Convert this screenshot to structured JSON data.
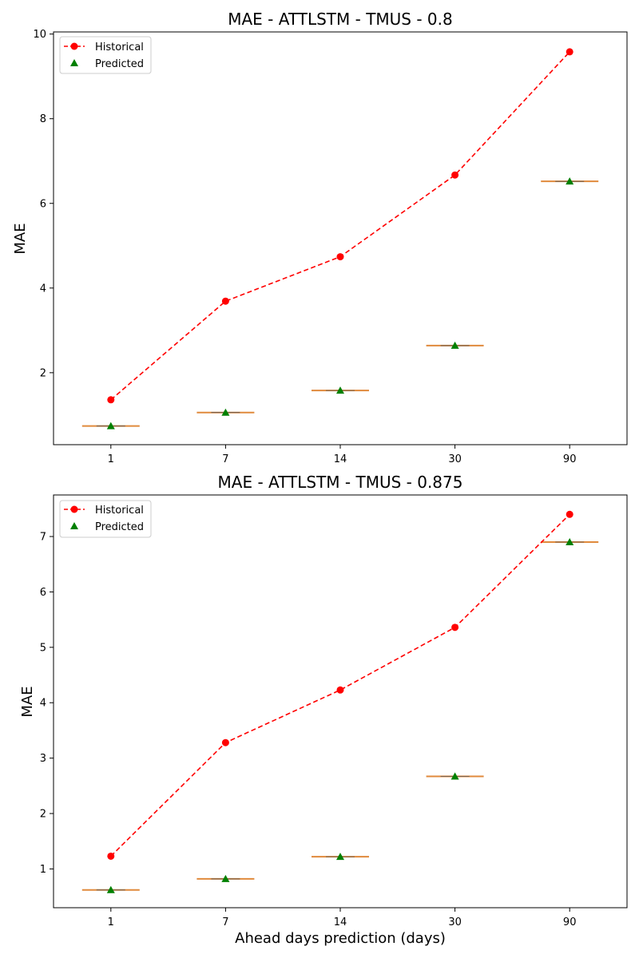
{
  "chart_data": [
    {
      "type": "line",
      "title": "MAE - ATTLSTM - TMUS - 0.8",
      "xlabel": "",
      "ylabel": "MAE",
      "categories": [
        "1",
        "7",
        "14",
        "30",
        "90"
      ],
      "ylim": [
        0.3,
        10.05
      ],
      "yticks": [
        2,
        4,
        6,
        8,
        10
      ],
      "grid": false,
      "legend_position": "top-left",
      "series": [
        {
          "name": "Historical",
          "style": "dashed line with circle markers",
          "color": "#ff0000",
          "values": [
            1.36,
            3.69,
            4.74,
            6.67,
            9.58
          ]
        },
        {
          "name": "Predicted",
          "style": "triangle markers with median bar",
          "color": "#008000",
          "values": [
            0.74,
            1.06,
            1.58,
            2.64,
            6.52
          ]
        }
      ],
      "median_bar_color": "#e08a3c"
    },
    {
      "type": "line",
      "title": "MAE - ATTLSTM - TMUS - 0.875",
      "xlabel": "Ahead days prediction (days)",
      "ylabel": "MAE",
      "categories": [
        "1",
        "7",
        "14",
        "30",
        "90"
      ],
      "ylim": [
        0.3,
        7.75
      ],
      "yticks": [
        1,
        2,
        3,
        4,
        5,
        6,
        7
      ],
      "grid": false,
      "legend_position": "top-left",
      "series": [
        {
          "name": "Historical",
          "style": "dashed line with circle markers",
          "color": "#ff0000",
          "values": [
            1.23,
            3.28,
            4.23,
            5.36,
            7.4
          ]
        },
        {
          "name": "Predicted",
          "style": "triangle markers with median bar",
          "color": "#008000",
          "values": [
            0.62,
            0.82,
            1.22,
            2.67,
            6.9
          ]
        }
      ],
      "median_bar_color": "#e08a3c"
    }
  ]
}
